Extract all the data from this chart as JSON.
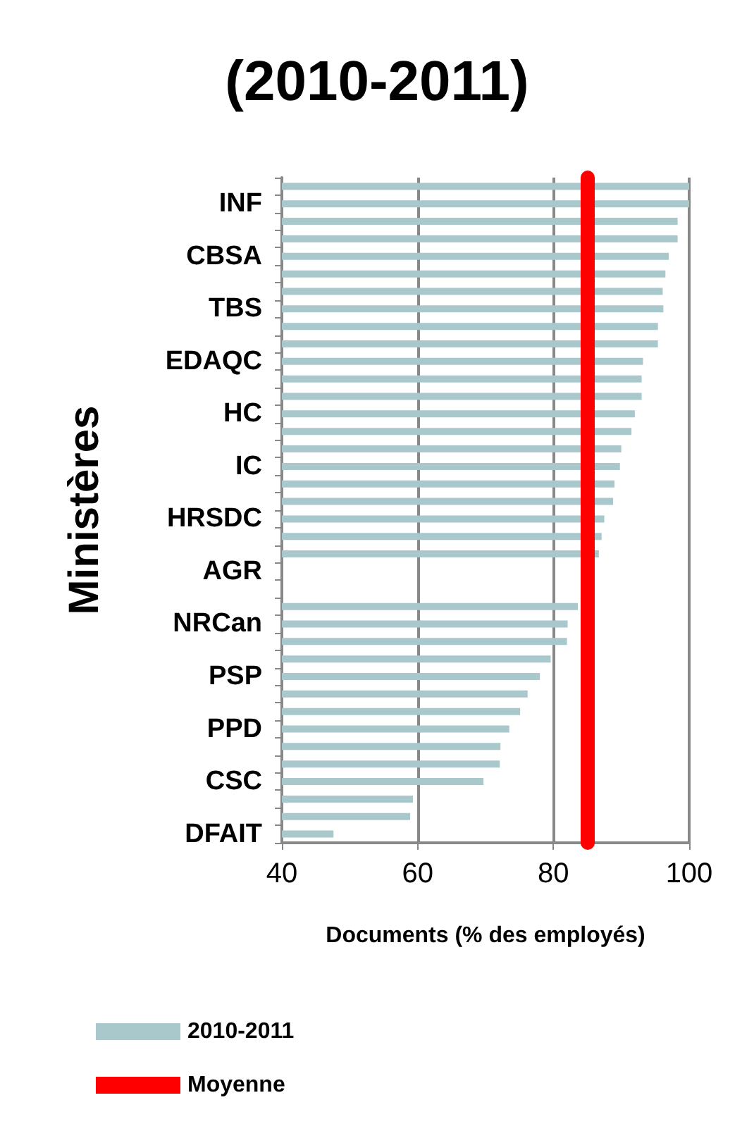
{
  "chart_data": {
    "type": "bar",
    "orientation": "horizontal",
    "title": "(2010-2011)",
    "xlabel": "Documents (% des employés)",
    "ylabel": "Ministères",
    "categories": [
      null,
      "INF",
      null,
      null,
      "CBSA",
      null,
      null,
      "TBS",
      null,
      null,
      "EDAQC",
      null,
      null,
      "HC",
      null,
      null,
      "IC",
      null,
      null,
      "HRSDC",
      null,
      null,
      "AGR",
      null,
      null,
      "NRCan",
      null,
      null,
      "PSP",
      null,
      null,
      "PPD",
      null,
      null,
      "CSC",
      null,
      null,
      "DFAIT"
    ],
    "series": [
      {
        "name": "2010-2011",
        "color": "#a8c8cc",
        "values": [
          100,
          100,
          98.3,
          98.3,
          97.0,
          96.5,
          96.1,
          96.2,
          95.4,
          95.4,
          93.2,
          93.0,
          93.0,
          92.0,
          91.5,
          90.0,
          89.8,
          89.0,
          88.8,
          87.5,
          87.1,
          86.7,
          null,
          null,
          83.6,
          82.1,
          82.0,
          79.6,
          78.0,
          76.2,
          75.1,
          73.5,
          72.2,
          72.1,
          69.7,
          59.3,
          58.9,
          47.6
        ]
      }
    ],
    "ref_lines": [
      {
        "axis": "x",
        "value": 85,
        "label": "Moyenne",
        "color": "#ff0000"
      }
    ],
    "xlim": [
      40,
      100
    ],
    "xticks": [
      40,
      60,
      80,
      100
    ],
    "grid": "x",
    "legend": "bottom left"
  }
}
